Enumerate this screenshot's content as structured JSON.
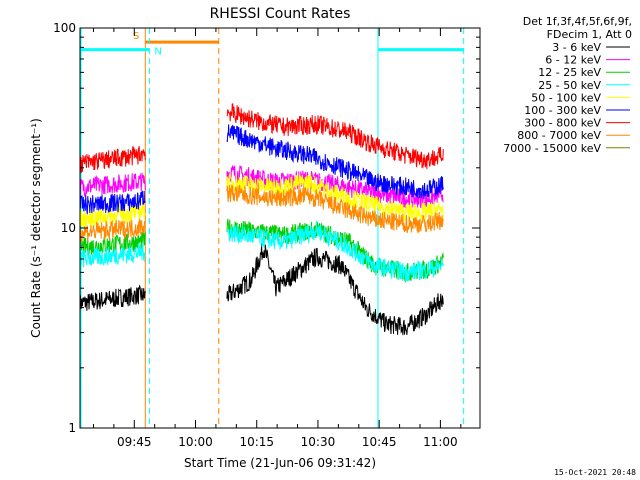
{
  "chart_data": {
    "type": "line",
    "title": "RHESSI Count Rates",
    "xlabel": "Start Time (21-Jun-06 09:31:42)",
    "ylabel": "Count Rate (s⁻¹ detector segment⁻¹)",
    "y_scale": "log",
    "ylim": [
      1,
      100
    ],
    "xlim_minutes_after_start": [
      0,
      98
    ],
    "x_tick_labels": [
      "09:45",
      "10:00",
      "10:15",
      "10:30",
      "10:45",
      "11:00"
    ],
    "x_tick_minutes": [
      13.3,
      28.3,
      43.3,
      58.3,
      73.3,
      88.3
    ],
    "y_tick_labels": [
      "1",
      "10",
      "100"
    ],
    "y_tick_values": [
      1,
      10,
      100
    ],
    "grid": false,
    "footer_date": "15-Oct-2021 20:48",
    "legend": {
      "header_line1": "Det 1f,3f,4f,5f,6f,9f,",
      "header_line2": "FDecim 1, Att 0",
      "placement": "top-right outside plot"
    },
    "series": [
      {
        "name": "3 - 6 keV",
        "color": "#000000",
        "gap": [
          16,
          36
        ],
        "points": [
          [
            0,
            4.2
          ],
          [
            14,
            4.6
          ],
          [
            36.5,
            4.6
          ],
          [
            42,
            5.5
          ],
          [
            45,
            8.0
          ],
          [
            48,
            5.0
          ],
          [
            58,
            7.2
          ],
          [
            64,
            6.5
          ],
          [
            70,
            4.0
          ],
          [
            75,
            3.3
          ],
          [
            80,
            3.2
          ],
          [
            85,
            3.7
          ],
          [
            89,
            4.5
          ]
        ]
      },
      {
        "name": "6 - 12 keV",
        "color": "#FF00FF",
        "gap": [
          16,
          36
        ],
        "points": [
          [
            0,
            16
          ],
          [
            14,
            17
          ],
          [
            36.5,
            19
          ],
          [
            48,
            17
          ],
          [
            56,
            17.5
          ],
          [
            62,
            16.5
          ],
          [
            72,
            15
          ],
          [
            80,
            14
          ],
          [
            85,
            14
          ],
          [
            89,
            15
          ]
        ]
      },
      {
        "name": "12 - 25 keV",
        "color": "#00CC00",
        "gap": [
          16,
          36
        ],
        "points": [
          [
            0,
            8
          ],
          [
            14,
            8.5
          ],
          [
            36.5,
            10
          ],
          [
            50,
            9.2
          ],
          [
            58,
            9.8
          ],
          [
            66,
            8.5
          ],
          [
            72,
            6.5
          ],
          [
            80,
            6.0
          ],
          [
            85,
            6.2
          ],
          [
            89,
            6.8
          ]
        ]
      },
      {
        "name": "25 - 50 keV",
        "color": "#00FFFF",
        "gap": [
          16,
          36
        ],
        "points": [
          [
            0,
            7
          ],
          [
            14,
            7.5
          ],
          [
            36.5,
            9.5
          ],
          [
            50,
            8.5
          ],
          [
            58,
            9.8
          ],
          [
            66,
            8.0
          ],
          [
            72,
            6.5
          ],
          [
            80,
            6.0
          ],
          [
            85,
            6.2
          ],
          [
            89,
            6.5
          ]
        ]
      },
      {
        "name": "50 - 100 keV",
        "color": "#FFFF00",
        "gap": [
          16,
          36
        ],
        "points": [
          [
            0,
            11
          ],
          [
            14,
            12
          ],
          [
            36.5,
            17
          ],
          [
            48,
            16
          ],
          [
            56,
            17
          ],
          [
            62,
            15
          ],
          [
            72,
            13
          ],
          [
            80,
            12
          ],
          [
            85,
            12
          ],
          [
            89,
            12.5
          ]
        ]
      },
      {
        "name": "100 - 300 keV",
        "color": "#0000FF",
        "gap": [
          16,
          36
        ],
        "points": [
          [
            0,
            13
          ],
          [
            14,
            13.5
          ],
          [
            36.5,
            30
          ],
          [
            48,
            25
          ],
          [
            56,
            23
          ],
          [
            64,
            20
          ],
          [
            72,
            17
          ],
          [
            80,
            16
          ],
          [
            85,
            15.5
          ],
          [
            89,
            16.5
          ]
        ]
      },
      {
        "name": "300 - 800 keV",
        "color": "#FF0000",
        "gap": [
          16,
          36
        ],
        "points": [
          [
            0,
            21
          ],
          [
            14,
            23
          ],
          [
            36.5,
            38
          ],
          [
            44,
            34
          ],
          [
            50,
            32
          ],
          [
            58,
            33
          ],
          [
            66,
            30
          ],
          [
            72,
            26
          ],
          [
            80,
            23
          ],
          [
            85,
            22
          ],
          [
            89,
            23
          ]
        ]
      },
      {
        "name": "800 - 7000 keV",
        "color": "#FF8800",
        "gap": [
          16,
          36
        ],
        "points": [
          [
            0,
            9.5
          ],
          [
            14,
            10
          ],
          [
            36.5,
            15
          ],
          [
            48,
            14
          ],
          [
            56,
            14.5
          ],
          [
            62,
            13
          ],
          [
            72,
            11
          ],
          [
            80,
            10.5
          ],
          [
            85,
            10.5
          ],
          [
            89,
            11
          ]
        ]
      },
      {
        "name": "7000 - 15000 keV",
        "color": "#808000",
        "points": []
      }
    ],
    "markers": [
      {
        "label": "S",
        "color": "#FF8800",
        "x_start": 16,
        "x_end": 34,
        "solid_x": 16,
        "dashed_x": 34,
        "y": 85
      },
      {
        "label": "N",
        "color": "#00FFFF",
        "x_start": 0,
        "x_end": 17,
        "dashed_x": 17,
        "y": 78
      },
      {
        "label": "",
        "color": "#00FFFF",
        "x_start": 73,
        "x_end": 94,
        "solid_x": 73,
        "dashed_x": 94,
        "y": 78
      }
    ]
  }
}
